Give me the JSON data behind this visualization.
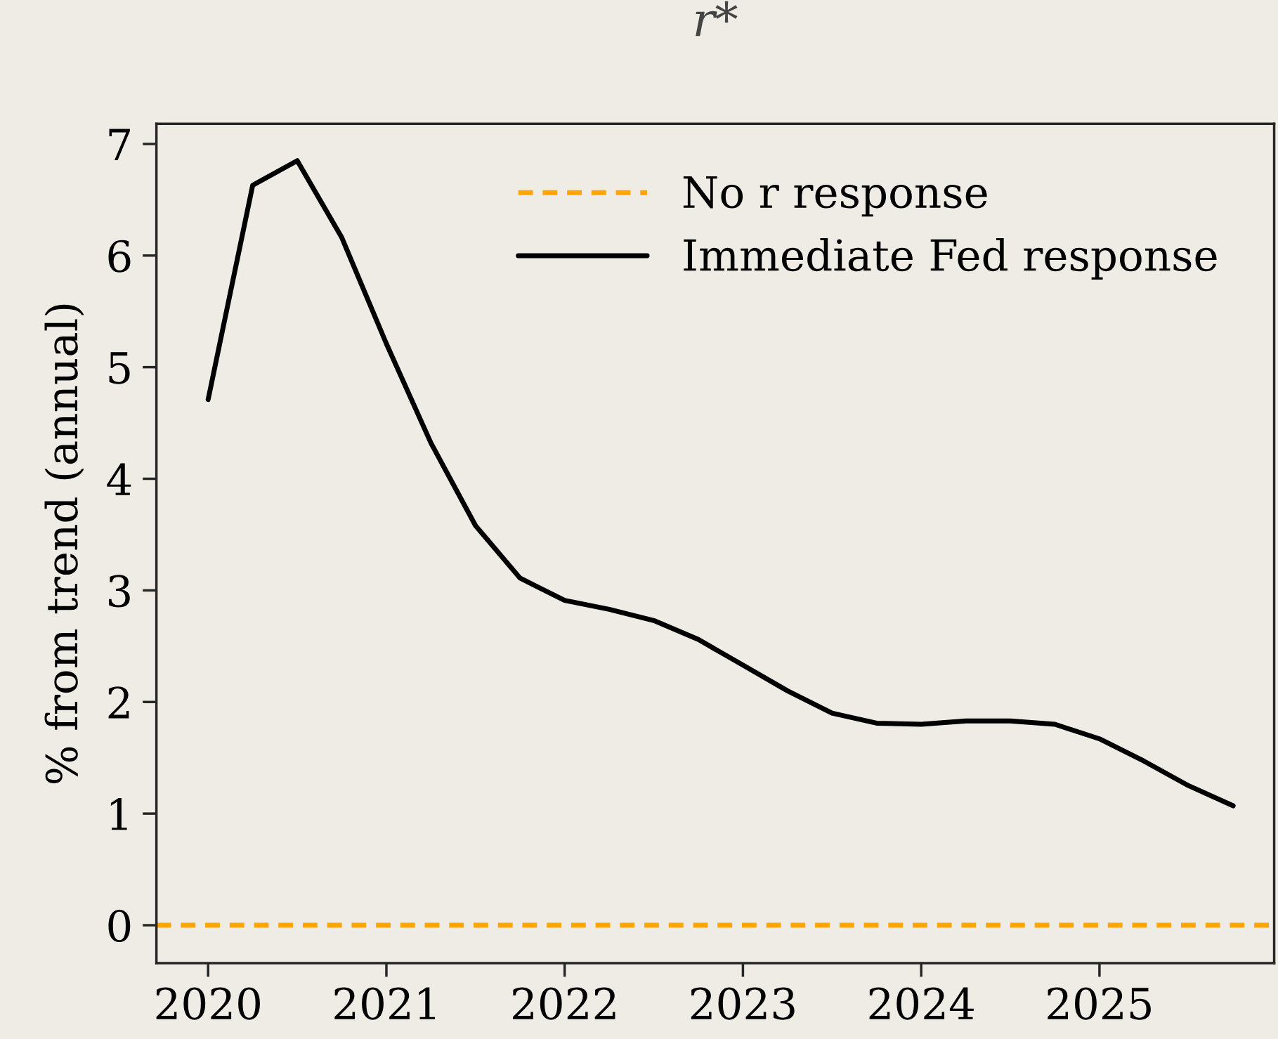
{
  "chart_data": {
    "type": "line",
    "title": "r*",
    "ylabel": "% from trend (annual)",
    "xlim": [
      2019.71,
      2025.98
    ],
    "xticks": [
      2020,
      2021,
      2022,
      2023,
      2024,
      2025
    ],
    "ylim": [
      -0.34,
      7.18
    ],
    "yticks": [
      0,
      1,
      2,
      3,
      4,
      5,
      6,
      7
    ],
    "grid": false,
    "legend": "top right",
    "series": [
      {
        "name": "No r response",
        "color": "#ffa500",
        "line_style": "dashed",
        "x": [
          2019.71,
          2025.98
        ],
        "values": [
          0,
          0
        ]
      },
      {
        "name": "Immediate Fed response",
        "color": "#000000",
        "line_style": "solid",
        "x": [
          2020.0,
          2020.25,
          2020.5,
          2020.75,
          2021.0,
          2021.25,
          2021.5,
          2021.75,
          2022.0,
          2022.25,
          2022.5,
          2022.75,
          2023.0,
          2023.25,
          2023.5,
          2023.75,
          2024.0,
          2024.25,
          2024.5,
          2024.75,
          2025.0,
          2025.25,
          2025.5,
          2025.75
        ],
        "values": [
          4.71,
          6.63,
          6.85,
          6.16,
          5.21,
          4.32,
          3.58,
          3.11,
          2.91,
          2.83,
          2.73,
          2.56,
          2.33,
          2.1,
          1.9,
          1.81,
          1.8,
          1.83,
          1.83,
          1.8,
          1.67,
          1.47,
          1.25,
          1.07
        ]
      }
    ]
  }
}
